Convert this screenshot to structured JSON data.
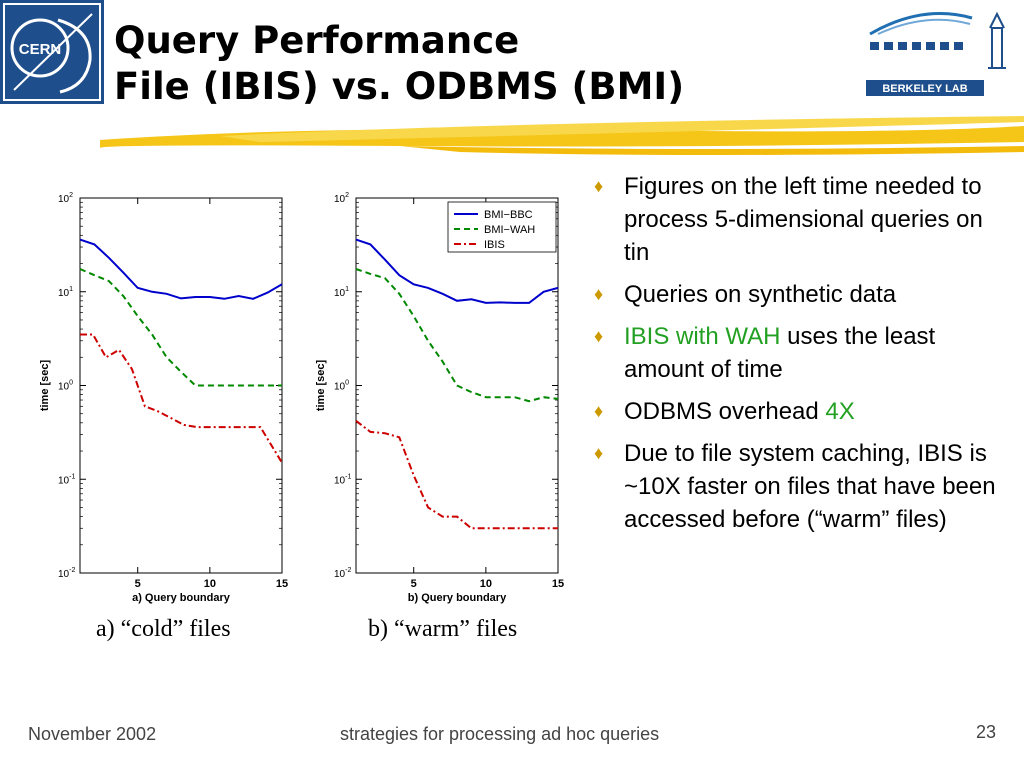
{
  "slide": {
    "title_line1": "Query Performance",
    "title_line2": "File (IBIS) vs. ODBMS (BMI)",
    "left_logo_text": "CERN",
    "right_logo_text": "BERKELEY LAB",
    "colors": {
      "accent": "#f5c518",
      "bullet": "#cc9900",
      "highlight": "#22a022",
      "cern_blue": "#1e4e8c"
    }
  },
  "bullets": [
    {
      "parts": [
        {
          "text": "Figures on the left time needed to process 5-dimensional queries on tin"
        }
      ]
    },
    {
      "parts": [
        {
          "text": "Queries on synthetic data"
        }
      ]
    },
    {
      "parts": [
        {
          "text": "IBIS with WAH",
          "color": "#22a022"
        },
        {
          "text": " uses the least amount of time"
        }
      ]
    },
    {
      "parts": [
        {
          "text": "ODBMS overhead "
        },
        {
          "text": "4X",
          "color": "#22a022"
        }
      ]
    },
    {
      "parts": [
        {
          "text": "Due to file system caching, IBIS is ~10X faster on files that have been accessed before (“warm” files)"
        }
      ]
    }
  ],
  "captions": {
    "a": "a) “cold” files",
    "b": "b) “warm” files"
  },
  "footer": {
    "date": "November 2002",
    "center": "strategies for processing ad hoc queries",
    "page": "23"
  },
  "chart_data": [
    {
      "type": "line",
      "xlabel": "a) Query boundary",
      "ylabel": "time [sec]",
      "xlim": [
        1,
        15
      ],
      "ylim": [
        0.01,
        100
      ],
      "yscale": "log",
      "x_ticks": [
        5,
        10,
        15
      ],
      "y_ticks": [
        {
          "v": 0.01,
          "b": "10",
          "e": "-2"
        },
        {
          "v": 0.1,
          "b": "10",
          "e": "-1"
        },
        {
          "v": 1,
          "b": "10",
          "e": "0"
        },
        {
          "v": 10,
          "b": "10",
          "e": "1"
        },
        {
          "v": 100,
          "b": "10",
          "e": "2"
        }
      ],
      "legend": null,
      "series": [
        {
          "name": "BMI−BBC",
          "color": "#0000cc",
          "style": "solid",
          "x": [
            1,
            2,
            3,
            4,
            5,
            6,
            7,
            8,
            9,
            10,
            11,
            12,
            13,
            14,
            15
          ],
          "values": [
            36,
            32,
            23,
            16,
            11,
            10,
            9.5,
            8.5,
            8.8,
            8.8,
            8.4,
            9.0,
            8.4,
            9.8,
            12
          ]
        },
        {
          "name": "BMI−WAH",
          "color": "#008800",
          "style": "dashed",
          "x": [
            1,
            2,
            3,
            4,
            5,
            6,
            7,
            8,
            9,
            10,
            11,
            12,
            13,
            14,
            15
          ],
          "values": [
            17.5,
            15,
            13,
            9,
            5.5,
            3.5,
            2.0,
            1.4,
            1.0,
            1.0,
            1.0,
            1.0,
            1.0,
            1.0,
            1.0
          ]
        },
        {
          "name": "IBIS",
          "color": "#cc0000",
          "style": "dashdot",
          "x": [
            1,
            1.9,
            2.8,
            3.7,
            4.6,
            5.5,
            6.4,
            7.3,
            8.2,
            9.1,
            10,
            11,
            12,
            13.5,
            15
          ],
          "values": [
            3.5,
            3.5,
            2.0,
            2.4,
            1.5,
            0.6,
            0.53,
            0.45,
            0.38,
            0.36,
            0.36,
            0.36,
            0.36,
            0.36,
            0.15
          ]
        }
      ]
    },
    {
      "type": "line",
      "xlabel": "b) Query boundary",
      "ylabel": "time [sec]",
      "xlim": [
        1,
        15
      ],
      "ylim": [
        0.01,
        100
      ],
      "yscale": "log",
      "x_ticks": [
        5,
        10,
        15
      ],
      "y_ticks": [
        {
          "v": 0.01,
          "b": "10",
          "e": "-2"
        },
        {
          "v": 0.1,
          "b": "10",
          "e": "-1"
        },
        {
          "v": 1,
          "b": "10",
          "e": "0"
        },
        {
          "v": 10,
          "b": "10",
          "e": "1"
        },
        {
          "v": 100,
          "b": "10",
          "e": "2"
        }
      ],
      "legend": "top-right",
      "series": [
        {
          "name": "BMI−BBC",
          "color": "#0000cc",
          "style": "solid",
          "x": [
            1,
            2,
            3,
            4,
            5,
            6,
            7,
            8,
            9,
            10,
            11,
            12,
            13,
            14,
            15
          ],
          "values": [
            36,
            32,
            22,
            15,
            12,
            11,
            9.5,
            8.0,
            8.3,
            7.6,
            7.7,
            7.6,
            7.6,
            10,
            11
          ]
        },
        {
          "name": "BMI−WAH",
          "color": "#008800",
          "style": "dashed",
          "x": [
            1,
            2,
            3,
            4,
            5,
            6,
            7,
            8,
            9,
            10,
            11,
            12,
            13,
            14,
            15
          ],
          "values": [
            17.5,
            15.5,
            14,
            9.5,
            5.5,
            3.0,
            1.8,
            1.0,
            0.85,
            0.75,
            0.75,
            0.75,
            0.68,
            0.75,
            0.72
          ]
        },
        {
          "name": "IBIS",
          "color": "#cc0000",
          "style": "dashdot",
          "x": [
            1,
            2,
            3,
            4,
            5,
            6,
            7,
            8,
            9,
            10,
            11,
            12,
            13,
            14,
            15
          ],
          "values": [
            0.42,
            0.32,
            0.31,
            0.28,
            0.11,
            0.05,
            0.04,
            0.04,
            0.03,
            0.03,
            0.03,
            0.03,
            0.03,
            0.03,
            0.03
          ]
        }
      ]
    }
  ]
}
